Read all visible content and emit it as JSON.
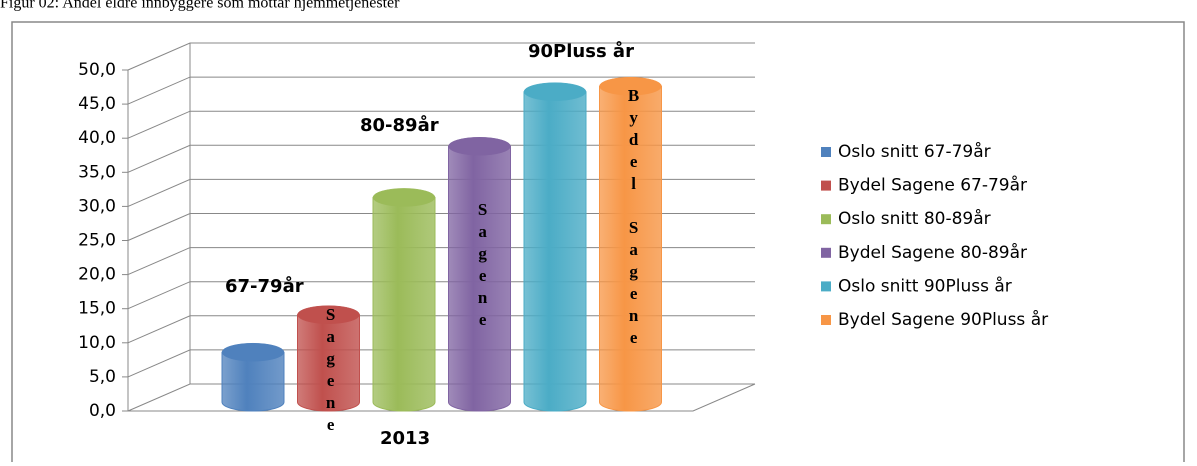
{
  "chart_data": {
    "type": "bar3d",
    "title": "Figur 02: Andel eldre innbyggere som mottar hjemmetjenester",
    "categories": [
      "2013"
    ],
    "ylim": [
      0,
      50
    ],
    "yticks": [
      {
        "value": 0,
        "label": "0,0"
      },
      {
        "value": 5,
        "label": "5,0"
      },
      {
        "value": 10,
        "label": "10,0"
      },
      {
        "value": 15,
        "label": "15,0"
      },
      {
        "value": 20,
        "label": "20,0"
      },
      {
        "value": 25,
        "label": "25,0"
      },
      {
        "value": 30,
        "label": "30,0"
      },
      {
        "value": 35,
        "label": "35,0"
      },
      {
        "value": 40,
        "label": "40,0"
      },
      {
        "value": 45,
        "label": "45,0"
      },
      {
        "value": 50,
        "label": "50,0"
      }
    ],
    "grid": true,
    "legend": "right",
    "series": [
      {
        "name": "Oslo snitt 67-79år",
        "color": "#4f81bd",
        "values": [
          7.3
        ]
      },
      {
        "name": "Bydel Sagene 67-79år",
        "color": "#c0504d",
        "values": [
          12.8
        ]
      },
      {
        "name": "Oslo snitt 80-89år",
        "color": "#9bbb59",
        "values": [
          30.0
        ]
      },
      {
        "name": "Bydel Sagene 80-89år",
        "color": "#8064a2",
        "values": [
          37.5
        ]
      },
      {
        "name": "Oslo snitt 90Pluss år",
        "color": "#4bacc6",
        "values": [
          45.5
        ]
      },
      {
        "name": "Bydel Sagene 90Pluss år",
        "color": "#f79646",
        "values": [
          46.3
        ]
      }
    ],
    "annotations": [
      "67-79år",
      "80-89år",
      "90Pluss år",
      "Sagene",
      "Sagene",
      "Bydel Sagene"
    ]
  }
}
